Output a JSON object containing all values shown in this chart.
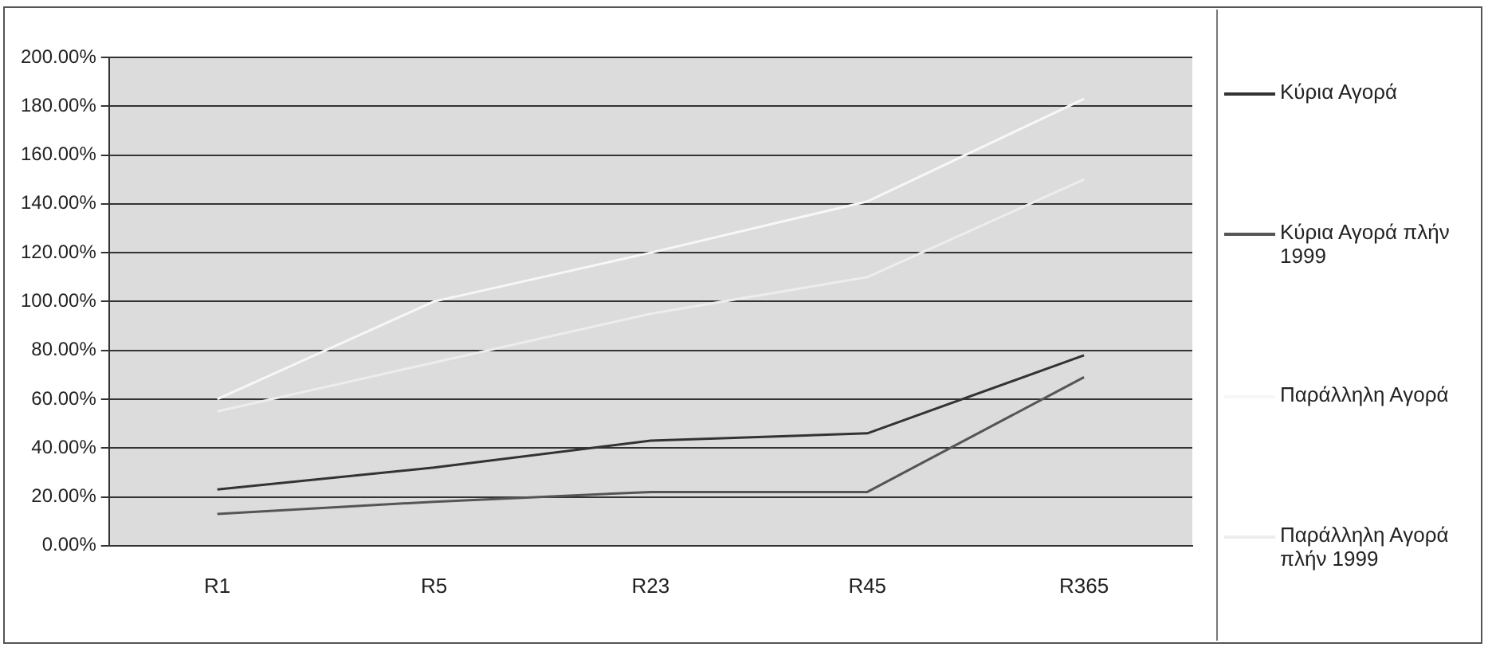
{
  "chart_data": {
    "type": "line",
    "categories": [
      "R1",
      "R5",
      "R23",
      "R45",
      "R365"
    ],
    "series": [
      {
        "name": "Κύρια Αγορά",
        "color": "#333333",
        "values": [
          23,
          32,
          43,
          46,
          78
        ]
      },
      {
        "name": "Κύρια Αγορά πλήν 1999",
        "color": "#555555",
        "values": [
          13,
          18,
          22,
          22,
          69
        ]
      },
      {
        "name": "Παράλληλη Αγορά",
        "color": "#f7f7f7",
        "values": [
          60,
          100,
          120,
          141,
          183
        ]
      },
      {
        "name": "Παράλληλη Αγορά πλήν 1999",
        "color": "#ededed",
        "values": [
          55,
          75,
          95,
          110,
          150
        ]
      }
    ],
    "ylim": [
      0,
      200
    ],
    "yticks": [
      {
        "value": 0,
        "label": "0.00%"
      },
      {
        "value": 20,
        "label": "20.00%"
      },
      {
        "value": 40,
        "label": "40.00%"
      },
      {
        "value": 60,
        "label": "60.00%"
      },
      {
        "value": 80,
        "label": "80.00%"
      },
      {
        "value": 100,
        "label": "100.00%"
      },
      {
        "value": 120,
        "label": "120.00%"
      },
      {
        "value": 140,
        "label": "140.00%"
      },
      {
        "value": 160,
        "label": "160.00%"
      },
      {
        "value": 180,
        "label": "180.00%"
      },
      {
        "value": 200,
        "label": "200.00%"
      }
    ],
    "grid": "y",
    "legend": "right",
    "marker": "none",
    "line_style": "solid"
  }
}
